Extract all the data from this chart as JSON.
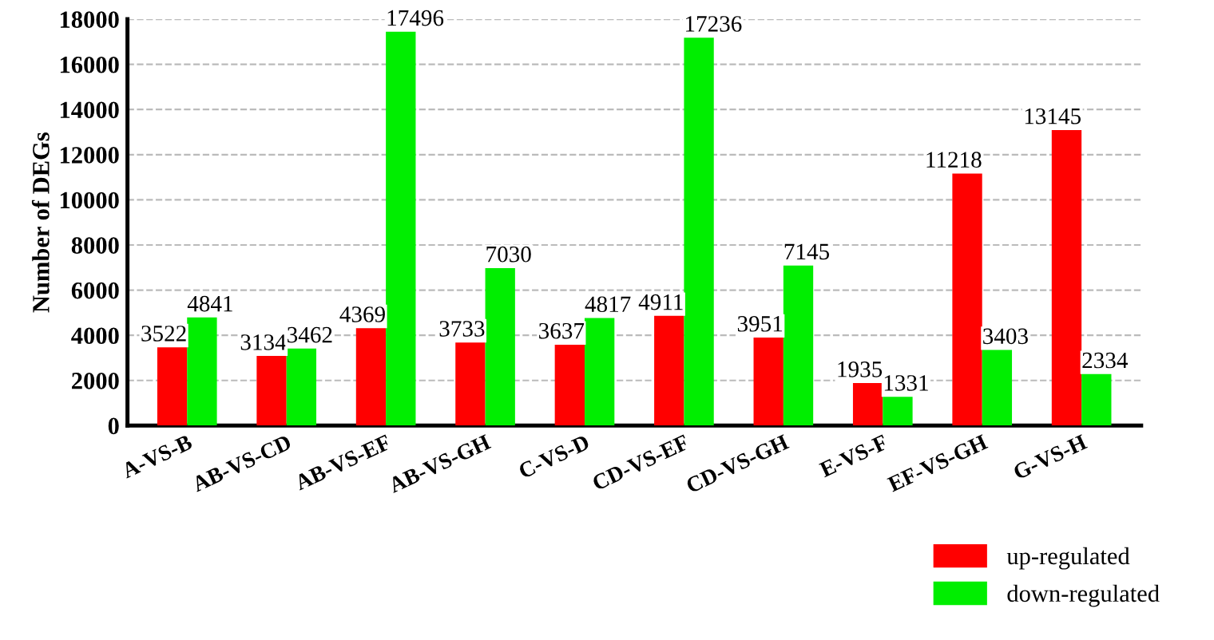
{
  "chart_data": {
    "type": "bar",
    "ylabel": "Number of DEGs",
    "categories": [
      "A-VS-B",
      "AB-VS-CD",
      "AB-VS-EF",
      "AB-VS-GH",
      "C-VS-D",
      "CD-VS-EF",
      "CD-VS-GH",
      "E-VS-F",
      "EF-VS-GH",
      "G-VS-H"
    ],
    "series": [
      {
        "name": "up-regulated",
        "color": "#ff0000",
        "values": [
          3522,
          3134,
          4369,
          3733,
          3637,
          4911,
          3951,
          1935,
          11218,
          13145
        ]
      },
      {
        "name": "down-regulated",
        "color": "#00ee00",
        "values": [
          4841,
          3462,
          17496,
          7030,
          4817,
          17236,
          7145,
          1331,
          3403,
          2334
        ]
      }
    ],
    "ylim": [
      0,
      18000
    ],
    "yticks": [
      0,
      2000,
      4000,
      6000,
      8000,
      10000,
      12000,
      14000,
      16000,
      18000
    ],
    "grid": "y",
    "legend": "bottom right",
    "data_labels": true
  }
}
